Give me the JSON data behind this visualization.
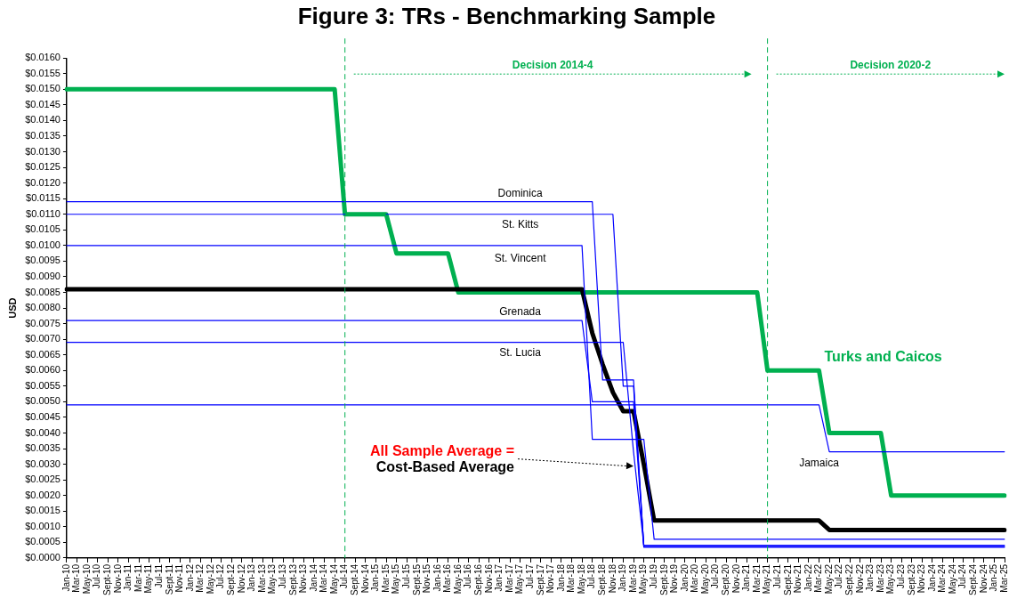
{
  "chart_data": {
    "type": "line",
    "title": "Figure 3: TRs - Benchmarking Sample",
    "ylabel": "USD",
    "categories": [
      "Jan-10",
      "Mar-10",
      "May-10",
      "Jul-10",
      "Sept-10",
      "Nov-10",
      "Jan-11",
      "Mar-11",
      "May-11",
      "Jul-11",
      "Sept-11",
      "Nov-11",
      "Jan-12",
      "Mar-12",
      "May-12",
      "Jul-12",
      "Sept-12",
      "Nov-12",
      "Jan-13",
      "Mar-13",
      "May-13",
      "Jul-13",
      "Sept-13",
      "Nov-13",
      "Jan-14",
      "Mar-14",
      "May-14",
      "Jul-14",
      "Sept-14",
      "Nov-14",
      "Jan-15",
      "Mar-15",
      "May-15",
      "Jul-15",
      "Sept-15",
      "Nov-15",
      "Jan-16",
      "Mar-16",
      "May-16",
      "Jul-16",
      "Sept-16",
      "Nov-16",
      "Jan-17",
      "Mar-17",
      "May-17",
      "Jul-17",
      "Sept-17",
      "Nov-17",
      "Jan-18",
      "Mar-18",
      "May-18",
      "Jul-18",
      "Sept-18",
      "Nov-18",
      "Jan-19",
      "Mar-19",
      "May-19",
      "Jul-19",
      "Sept-19",
      "Nov-19",
      "Jan-20",
      "Mar-20",
      "May-20",
      "Jul-20",
      "Sept-20",
      "Nov-20",
      "Jan-21",
      "Mar-21",
      "May-21",
      "Jul-21",
      "Sept-21",
      "Nov-21",
      "Jan-22",
      "Mar-22",
      "May-22",
      "Jul-22",
      "Sept-22",
      "Nov-22",
      "Jan-23",
      "Mar-23",
      "May-23",
      "Jul-23",
      "Sept-23",
      "Nov-23",
      "Jan-24",
      "Mar-24",
      "May-24",
      "Jul-24",
      "Sept-24",
      "Nov-24",
      "Jan-25",
      "Mar-25"
    ],
    "series": [
      {
        "name": "Turks and Caicos",
        "color": "#00b050",
        "values": [
          0.015,
          0.015,
          0.015,
          0.015,
          0.015,
          0.015,
          0.015,
          0.015,
          0.015,
          0.015,
          0.015,
          0.015,
          0.015,
          0.015,
          0.015,
          0.015,
          0.015,
          0.015,
          0.015,
          0.015,
          0.015,
          0.015,
          0.015,
          0.015,
          0.015,
          0.015,
          0.015,
          0.011,
          0.011,
          0.011,
          0.011,
          0.011,
          0.00975,
          0.00975,
          0.00975,
          0.00975,
          0.00975,
          0.00975,
          0.0085,
          0.0085,
          0.0085,
          0.0085,
          0.0085,
          0.0085,
          0.0085,
          0.0085,
          0.0085,
          0.0085,
          0.0085,
          0.0085,
          0.0085,
          0.0085,
          0.0085,
          0.0085,
          0.0085,
          0.0085,
          0.0085,
          0.0085,
          0.0085,
          0.0085,
          0.0085,
          0.0085,
          0.0085,
          0.0085,
          0.0085,
          0.0085,
          0.0085,
          0.0085,
          0.006,
          0.006,
          0.006,
          0.006,
          0.006,
          0.006,
          0.004,
          0.004,
          0.004,
          0.004,
          0.004,
          0.004,
          0.002,
          0.002,
          0.002,
          0.002,
          0.002,
          0.002,
          0.002,
          0.002,
          0.002,
          0.002,
          0.002,
          0.002
        ]
      },
      {
        "color": "#000000",
        "values": [
          0.0086,
          0.0086,
          0.0086,
          0.0086,
          0.0086,
          0.0086,
          0.0086,
          0.0086,
          0.0086,
          0.0086,
          0.0086,
          0.0086,
          0.0086,
          0.0086,
          0.0086,
          0.0086,
          0.0086,
          0.0086,
          0.0086,
          0.0086,
          0.0086,
          0.0086,
          0.0086,
          0.0086,
          0.0086,
          0.0086,
          0.0086,
          0.0086,
          0.0086,
          0.0086,
          0.0086,
          0.0086,
          0.0086,
          0.0086,
          0.0086,
          0.0086,
          0.0086,
          0.0086,
          0.0086,
          0.0086,
          0.0086,
          0.0086,
          0.0086,
          0.0086,
          0.0086,
          0.0086,
          0.0086,
          0.0086,
          0.0086,
          0.0086,
          0.0086,
          0.0072,
          0.0062,
          0.0053,
          0.0047,
          0.0047,
          0.003,
          0.0012,
          0.0012,
          0.0012,
          0.0012,
          0.0012,
          0.0012,
          0.0012,
          0.0012,
          0.0012,
          0.0012,
          0.0012,
          0.0012,
          0.0012,
          0.0012,
          0.0012,
          0.0012,
          0.0012,
          0.0009,
          0.0009,
          0.0009,
          0.0009,
          0.0009,
          0.0009,
          0.0009,
          0.0009,
          0.0009,
          0.0009,
          0.0009,
          0.0009,
          0.0009,
          0.0009,
          0.0009,
          0.0009,
          0.0009,
          0.0009
        ]
      },
      {
        "name": "Dominica",
        "color": "#0000ff",
        "values": [
          0.0114,
          0.0114,
          0.0114,
          0.0114,
          0.0114,
          0.0114,
          0.0114,
          0.0114,
          0.0114,
          0.0114,
          0.0114,
          0.0114,
          0.0114,
          0.0114,
          0.0114,
          0.0114,
          0.0114,
          0.0114,
          0.0114,
          0.0114,
          0.0114,
          0.0114,
          0.0114,
          0.0114,
          0.0114,
          0.0114,
          0.0114,
          0.0114,
          0.0114,
          0.0114,
          0.0114,
          0.0114,
          0.0114,
          0.0114,
          0.0114,
          0.0114,
          0.0114,
          0.0114,
          0.0114,
          0.0114,
          0.0114,
          0.0114,
          0.0114,
          0.0114,
          0.0114,
          0.0114,
          0.0114,
          0.0114,
          0.0114,
          0.0114,
          0.0114,
          0.0114,
          0.0057,
          0.0057,
          0.0057,
          0.0057,
          0.00035,
          0.00035,
          0.00035,
          0.00035,
          0.00035,
          0.00035,
          0.00035,
          0.00035,
          0.00035,
          0.00035,
          0.00035,
          0.00035,
          0.00035,
          0.00035,
          0.00035,
          0.00035,
          0.00035,
          0.00035,
          0.00035,
          0.00035,
          0.00035,
          0.00035,
          0.00035,
          0.00035,
          0.00035,
          0.00035,
          0.00035,
          0.00035,
          0.00035,
          0.00035,
          0.00035,
          0.00035,
          0.00035,
          0.00035,
          0.00035,
          0.00035
        ]
      },
      {
        "name": "St. Kitts",
        "color": "#0000ff",
        "values": [
          0.011,
          0.011,
          0.011,
          0.011,
          0.011,
          0.011,
          0.011,
          0.011,
          0.011,
          0.011,
          0.011,
          0.011,
          0.011,
          0.011,
          0.011,
          0.011,
          0.011,
          0.011,
          0.011,
          0.011,
          0.011,
          0.011,
          0.011,
          0.011,
          0.011,
          0.011,
          0.011,
          0.011,
          null,
          null,
          null,
          0.011,
          0.011,
          0.011,
          0.011,
          0.011,
          0.011,
          0.011,
          0.011,
          0.011,
          0.011,
          0.011,
          0.011,
          0.011,
          0.011,
          0.011,
          0.011,
          0.011,
          0.011,
          0.011,
          0.011,
          0.011,
          0.011,
          0.011,
          0.0055,
          0.0055,
          0.00035,
          0.00035,
          0.00035,
          0.00035,
          0.00035,
          0.00035,
          0.00035,
          0.00035,
          0.00035,
          0.00035,
          0.00035,
          0.00035,
          0.00035,
          0.00035,
          0.00035,
          0.00035,
          0.00035,
          0.00035,
          0.00035,
          0.00035,
          0.00035,
          0.00035,
          0.00035,
          0.00035,
          0.00035,
          0.00035,
          0.00035,
          0.00035,
          0.00035,
          0.00035,
          0.00035,
          0.00035,
          0.00035,
          0.00035,
          0.00035,
          0.00035
        ]
      },
      {
        "name": "St. Vincent",
        "color": "#0000ff",
        "values": [
          0.01,
          0.01,
          0.01,
          0.01,
          0.01,
          0.01,
          0.01,
          0.01,
          0.01,
          0.01,
          0.01,
          0.01,
          0.01,
          0.01,
          0.01,
          0.01,
          0.01,
          0.01,
          0.01,
          0.01,
          0.01,
          0.01,
          0.01,
          0.01,
          0.01,
          0.01,
          0.01,
          0.01,
          0.01,
          0.01,
          0.01,
          0.01,
          0.01,
          0.01,
          0.01,
          0.01,
          0.01,
          0.01,
          0.01,
          0.01,
          0.01,
          0.01,
          0.01,
          0.01,
          0.01,
          0.01,
          0.01,
          0.01,
          0.01,
          0.01,
          0.01,
          0.0038,
          0.0038,
          0.0038,
          0.0038,
          0.0038,
          0.0038,
          0.0006,
          0.0006,
          0.0006,
          0.0006,
          0.0006,
          0.0006,
          0.0006,
          0.0006,
          0.0006,
          0.0006,
          0.0006,
          0.0006,
          0.0006,
          0.0006,
          0.0006,
          0.0006,
          0.0006,
          0.0006,
          0.0006,
          0.0006,
          0.0006,
          0.0006,
          0.0006,
          0.0006,
          0.0006,
          0.0006,
          0.0006,
          0.0006,
          0.0006,
          0.0006,
          0.0006,
          0.0006,
          0.0006,
          0.0006,
          0.0006
        ]
      },
      {
        "name": "Grenada",
        "color": "#0000ff",
        "values": [
          0.0076,
          0.0076,
          0.0076,
          0.0076,
          0.0076,
          0.0076,
          0.0076,
          0.0076,
          0.0076,
          0.0076,
          0.0076,
          0.0076,
          0.0076,
          0.0076,
          0.0076,
          0.0076,
          0.0076,
          0.0076,
          0.0076,
          0.0076,
          0.0076,
          0.0076,
          0.0076,
          0.0076,
          0.0076,
          0.0076,
          0.0076,
          0.0076,
          0.0076,
          0.0076,
          0.0076,
          0.0076,
          0.0076,
          0.0076,
          0.0076,
          0.0076,
          0.0076,
          0.0076,
          0.0076,
          0.0076,
          0.0076,
          0.0076,
          0.0076,
          0.0076,
          0.0076,
          0.0076,
          0.0076,
          0.0076,
          0.0076,
          0.0076,
          0.0076,
          0.005,
          0.005,
          0.005,
          0.005,
          0.005,
          0.0004,
          0.0004,
          0.0004,
          0.0004,
          0.0004,
          0.0004,
          0.0004,
          0.0004,
          0.0004,
          0.0004,
          0.0004,
          0.0004,
          0.0004,
          0.0004,
          0.0004,
          0.0004,
          0.0004,
          0.0004,
          0.0004,
          0.0004,
          0.0004,
          0.0004,
          0.0004,
          0.0004,
          0.0004,
          0.0004,
          0.0004,
          0.0004,
          0.0004,
          0.0004,
          0.0004,
          0.0004,
          0.0004,
          0.0004,
          0.0004,
          0.0004
        ]
      },
      {
        "name": "St. Lucia",
        "color": "#0000ff",
        "values": [
          0.0069,
          0.0069,
          0.0069,
          0.0069,
          0.0069,
          0.0069,
          0.0069,
          0.0069,
          0.0069,
          0.0069,
          0.0069,
          0.0069,
          0.0069,
          0.0069,
          0.0069,
          0.0069,
          0.0069,
          0.0069,
          0.0069,
          0.0069,
          0.0069,
          0.0069,
          0.0069,
          0.0069,
          0.0069,
          0.0069,
          0.0069,
          0.0069,
          0.0069,
          0.0069,
          0.0069,
          0.0069,
          0.0069,
          0.0069,
          0.0069,
          0.0069,
          0.0069,
          0.0069,
          0.0069,
          0.0069,
          0.0069,
          0.0069,
          0.0069,
          0.0069,
          0.0069,
          0.0069,
          0.0069,
          0.0069,
          0.0069,
          0.0069,
          0.0069,
          0.0069,
          0.0069,
          0.0069,
          0.0069,
          0.0034,
          0.0004,
          0.0004,
          0.0004,
          0.0004,
          0.0004,
          0.0004,
          0.0004,
          0.0004,
          0.0004,
          0.0004,
          0.0004,
          0.0004,
          0.0004,
          0.0004,
          0.0004,
          0.0004,
          0.0004,
          0.0004,
          0.0004,
          0.0004,
          0.0004,
          0.0004,
          0.0004,
          0.0004,
          0.0004,
          0.0004,
          0.0004,
          0.0004,
          0.0004,
          0.0004,
          0.0004,
          0.0004,
          0.0004,
          0.0004,
          0.0004,
          0.0004
        ]
      },
      {
        "name": "Jamaica",
        "color": "#0000ff",
        "values": [
          0.0049,
          0.0049,
          0.0049,
          0.0049,
          0.0049,
          0.0049,
          0.0049,
          0.0049,
          0.0049,
          0.0049,
          0.0049,
          0.0049,
          0.0049,
          0.0049,
          0.0049,
          0.0049,
          0.0049,
          0.0049,
          0.0049,
          0.0049,
          0.0049,
          0.0049,
          0.0049,
          0.0049,
          0.0049,
          0.0049,
          0.0049,
          0.0049,
          0.0049,
          0.0049,
          0.0049,
          0.0049,
          0.0049,
          0.0049,
          0.0049,
          0.0049,
          0.0049,
          0.0049,
          0.0049,
          0.0049,
          0.0049,
          0.0049,
          0.0049,
          0.0049,
          0.0049,
          0.0049,
          0.0049,
          0.0049,
          0.0049,
          0.0049,
          0.0049,
          0.0049,
          0.0049,
          0.0049,
          0.0049,
          0.0049,
          0.0049,
          0.0049,
          0.0049,
          0.0049,
          0.0049,
          0.0049,
          0.0049,
          0.0049,
          0.0049,
          0.0049,
          0.0049,
          0.0049,
          0.0049,
          0.0049,
          0.0049,
          0.0049,
          0.0049,
          0.0049,
          0.0034,
          0.0034,
          0.0034,
          0.0034,
          0.0034,
          0.0034,
          0.0034,
          0.0034,
          0.0034,
          0.0034,
          0.0034,
          0.0034,
          0.0034,
          0.0034,
          0.0034,
          0.0034,
          0.0034,
          0.0034
        ]
      }
    ],
    "ylim": [
      0,
      0.016
    ],
    "yticks": [
      {
        "value": 0,
        "label": "$0.0000"
      },
      {
        "value": 0.0005,
        "label": "$0.0005"
      },
      {
        "value": 0.001,
        "label": "$0.0010"
      },
      {
        "value": 0.0015,
        "label": "$0.0015"
      },
      {
        "value": 0.002,
        "label": "$0.0020"
      },
      {
        "value": 0.0025,
        "label": "$0.0025"
      },
      {
        "value": 0.003,
        "label": "$0.0030"
      },
      {
        "value": 0.0035,
        "label": "$0.0035"
      },
      {
        "value": 0.004,
        "label": "$0.0040"
      },
      {
        "value": 0.0045,
        "label": "$0.0045"
      },
      {
        "value": 0.005,
        "label": "$0.0050"
      },
      {
        "value": 0.0055,
        "label": "$0.0055"
      },
      {
        "value": 0.006,
        "label": "$0.0060"
      },
      {
        "value": 0.0065,
        "label": "$0.0065"
      },
      {
        "value": 0.007,
        "label": "$0.0070"
      },
      {
        "value": 0.0075,
        "label": "$0.0075"
      },
      {
        "value": 0.008,
        "label": "$0.0080"
      },
      {
        "value": 0.0085,
        "label": "$0.0085"
      },
      {
        "value": 0.009,
        "label": "$0.0090"
      },
      {
        "value": 0.0095,
        "label": "$0.0095"
      },
      {
        "value": 0.01,
        "label": "$0.0100"
      },
      {
        "value": 0.0105,
        "label": "$0.0105"
      },
      {
        "value": 0.011,
        "label": "$0.0110"
      },
      {
        "value": 0.0115,
        "label": "$0.0115"
      },
      {
        "value": 0.012,
        "label": "$0.0120"
      },
      {
        "value": 0.0125,
        "label": "$0.0125"
      },
      {
        "value": 0.013,
        "label": "$0.0130"
      },
      {
        "value": 0.0135,
        "label": "$0.0135"
      },
      {
        "value": 0.014,
        "label": "$0.0140"
      },
      {
        "value": 0.0145,
        "label": "$0.0145"
      },
      {
        "value": 0.015,
        "label": "$0.0150"
      },
      {
        "value": 0.0155,
        "label": "$0.0155"
      },
      {
        "value": 0.016,
        "label": "$0.0160"
      }
    ],
    "ref_lines": [
      {
        "axis": "x",
        "value": "Jul-14",
        "color": "#00b050",
        "line_style": "dashed"
      },
      {
        "axis": "x",
        "value": "May-21",
        "color": "#00b050",
        "line_style": "dashed"
      }
    ],
    "annotations": [
      "Decision 2014-4",
      "Decision 2020-2",
      "All Sample Average =",
      {
        "text": "Cost-Based Average",
        "x": "Mar-19",
        "y": 0.003
      }
    ],
    "grid": false,
    "legend": false,
    "marker": "none",
    "line_style": "solid"
  }
}
